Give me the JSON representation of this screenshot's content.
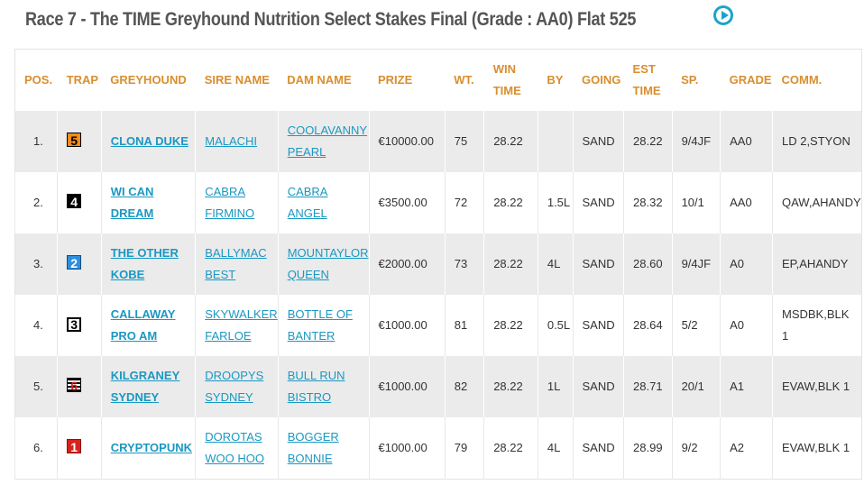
{
  "race": {
    "title": "Race 7 - The TIME Greyhound Nutrition Select Stakes Final   (Grade : AA0) Flat 525",
    "play_icon": "play-circle-icon"
  },
  "columns": {
    "pos": "POS.",
    "trap": "TRAP",
    "greyhound": "GREYHOUND",
    "sire": "SIRE NAME",
    "dam": "DAM NAME",
    "prize": "PRIZE",
    "wt": "WT.",
    "win_time_1": "WIN",
    "win_time_2": "TIME",
    "by": "BY",
    "going": "GOING",
    "est_time_1": "EST",
    "est_time_2": "TIME",
    "sp": "SP.",
    "grade": "GRADE",
    "comm": "COMM."
  },
  "rows": [
    {
      "pos": "1.",
      "trap": "5",
      "greyhound_1": "CLONA DUKE",
      "greyhound_2": "",
      "sire_1": "MALACHI",
      "sire_2": "",
      "dam_1": "COOLAVANNY",
      "dam_2": "PEARL",
      "prize": "€10000.00",
      "wt": "75",
      "win_time": "28.22",
      "by": "",
      "going": "SAND",
      "est_time": "28.22",
      "sp": "9/4JF",
      "grade": "AA0",
      "comm_1": "LD 2,STYON",
      "comm_2": ""
    },
    {
      "pos": "2.",
      "trap": "4",
      "greyhound_1": "WI CAN",
      "greyhound_2": "DREAM",
      "sire_1": "CABRA",
      "sire_2": "FIRMINO",
      "dam_1": "CABRA ANGEL",
      "dam_2": "",
      "prize": "€3500.00",
      "wt": "72",
      "win_time": "28.22",
      "by": "1.5L",
      "going": "SAND",
      "est_time": "28.32",
      "sp": "10/1",
      "grade": "AA0",
      "comm_1": "QAW,AHANDY",
      "comm_2": ""
    },
    {
      "pos": "3.",
      "trap": "2",
      "greyhound_1": "THE OTHER",
      "greyhound_2": "KOBE",
      "sire_1": "BALLYMAC",
      "sire_2": "BEST",
      "dam_1": "MOUNTAYLOR",
      "dam_2": "QUEEN",
      "prize": "€2000.00",
      "wt": "73",
      "win_time": "28.22",
      "by": "4L",
      "going": "SAND",
      "est_time": "28.60",
      "sp": "9/4JF",
      "grade": "A0",
      "comm_1": "EP,AHANDY",
      "comm_2": ""
    },
    {
      "pos": "4.",
      "trap": "3",
      "greyhound_1": "CALLAWAY",
      "greyhound_2": "PRO AM",
      "sire_1": "SKYWALKER",
      "sire_2": "FARLOE",
      "dam_1": "BOTTLE OF",
      "dam_2": "BANTER",
      "prize": "€1000.00",
      "wt": "81",
      "win_time": "28.22",
      "by": "0.5L",
      "going": "SAND",
      "est_time": "28.64",
      "sp": "5/2",
      "grade": "A0",
      "comm_1": "MSDBK,BLK",
      "comm_2": "1"
    },
    {
      "pos": "5.",
      "trap": "6",
      "greyhound_1": "KILGRANEY",
      "greyhound_2": "SYDNEY",
      "sire_1": "DROOPYS",
      "sire_2": "SYDNEY",
      "dam_1": "BULL RUN",
      "dam_2": "BISTRO",
      "prize": "€1000.00",
      "wt": "82",
      "win_time": "28.22",
      "by": "1L",
      "going": "SAND",
      "est_time": "28.71",
      "sp": "20/1",
      "grade": "A1",
      "comm_1": "EVAW,BLK 1",
      "comm_2": ""
    },
    {
      "pos": "6.",
      "trap": "1",
      "greyhound_1": "CRYPTOPUNK",
      "greyhound_2": "",
      "sire_1": "DOROTAS",
      "sire_2": "WOO HOO",
      "dam_1": "BOGGER",
      "dam_2": "BONNIE",
      "prize": "€1000.00",
      "wt": "79",
      "win_time": "28.22",
      "by": "4L",
      "going": "SAND",
      "est_time": "28.99",
      "sp": "9/2",
      "grade": "A2",
      "comm_1": "EVAW,BLK 1",
      "comm_2": ""
    }
  ],
  "colors": {
    "header_text": "#d98e2e",
    "link": "#1a98c2",
    "stripe": "#ebebeb",
    "title": "#555555"
  }
}
